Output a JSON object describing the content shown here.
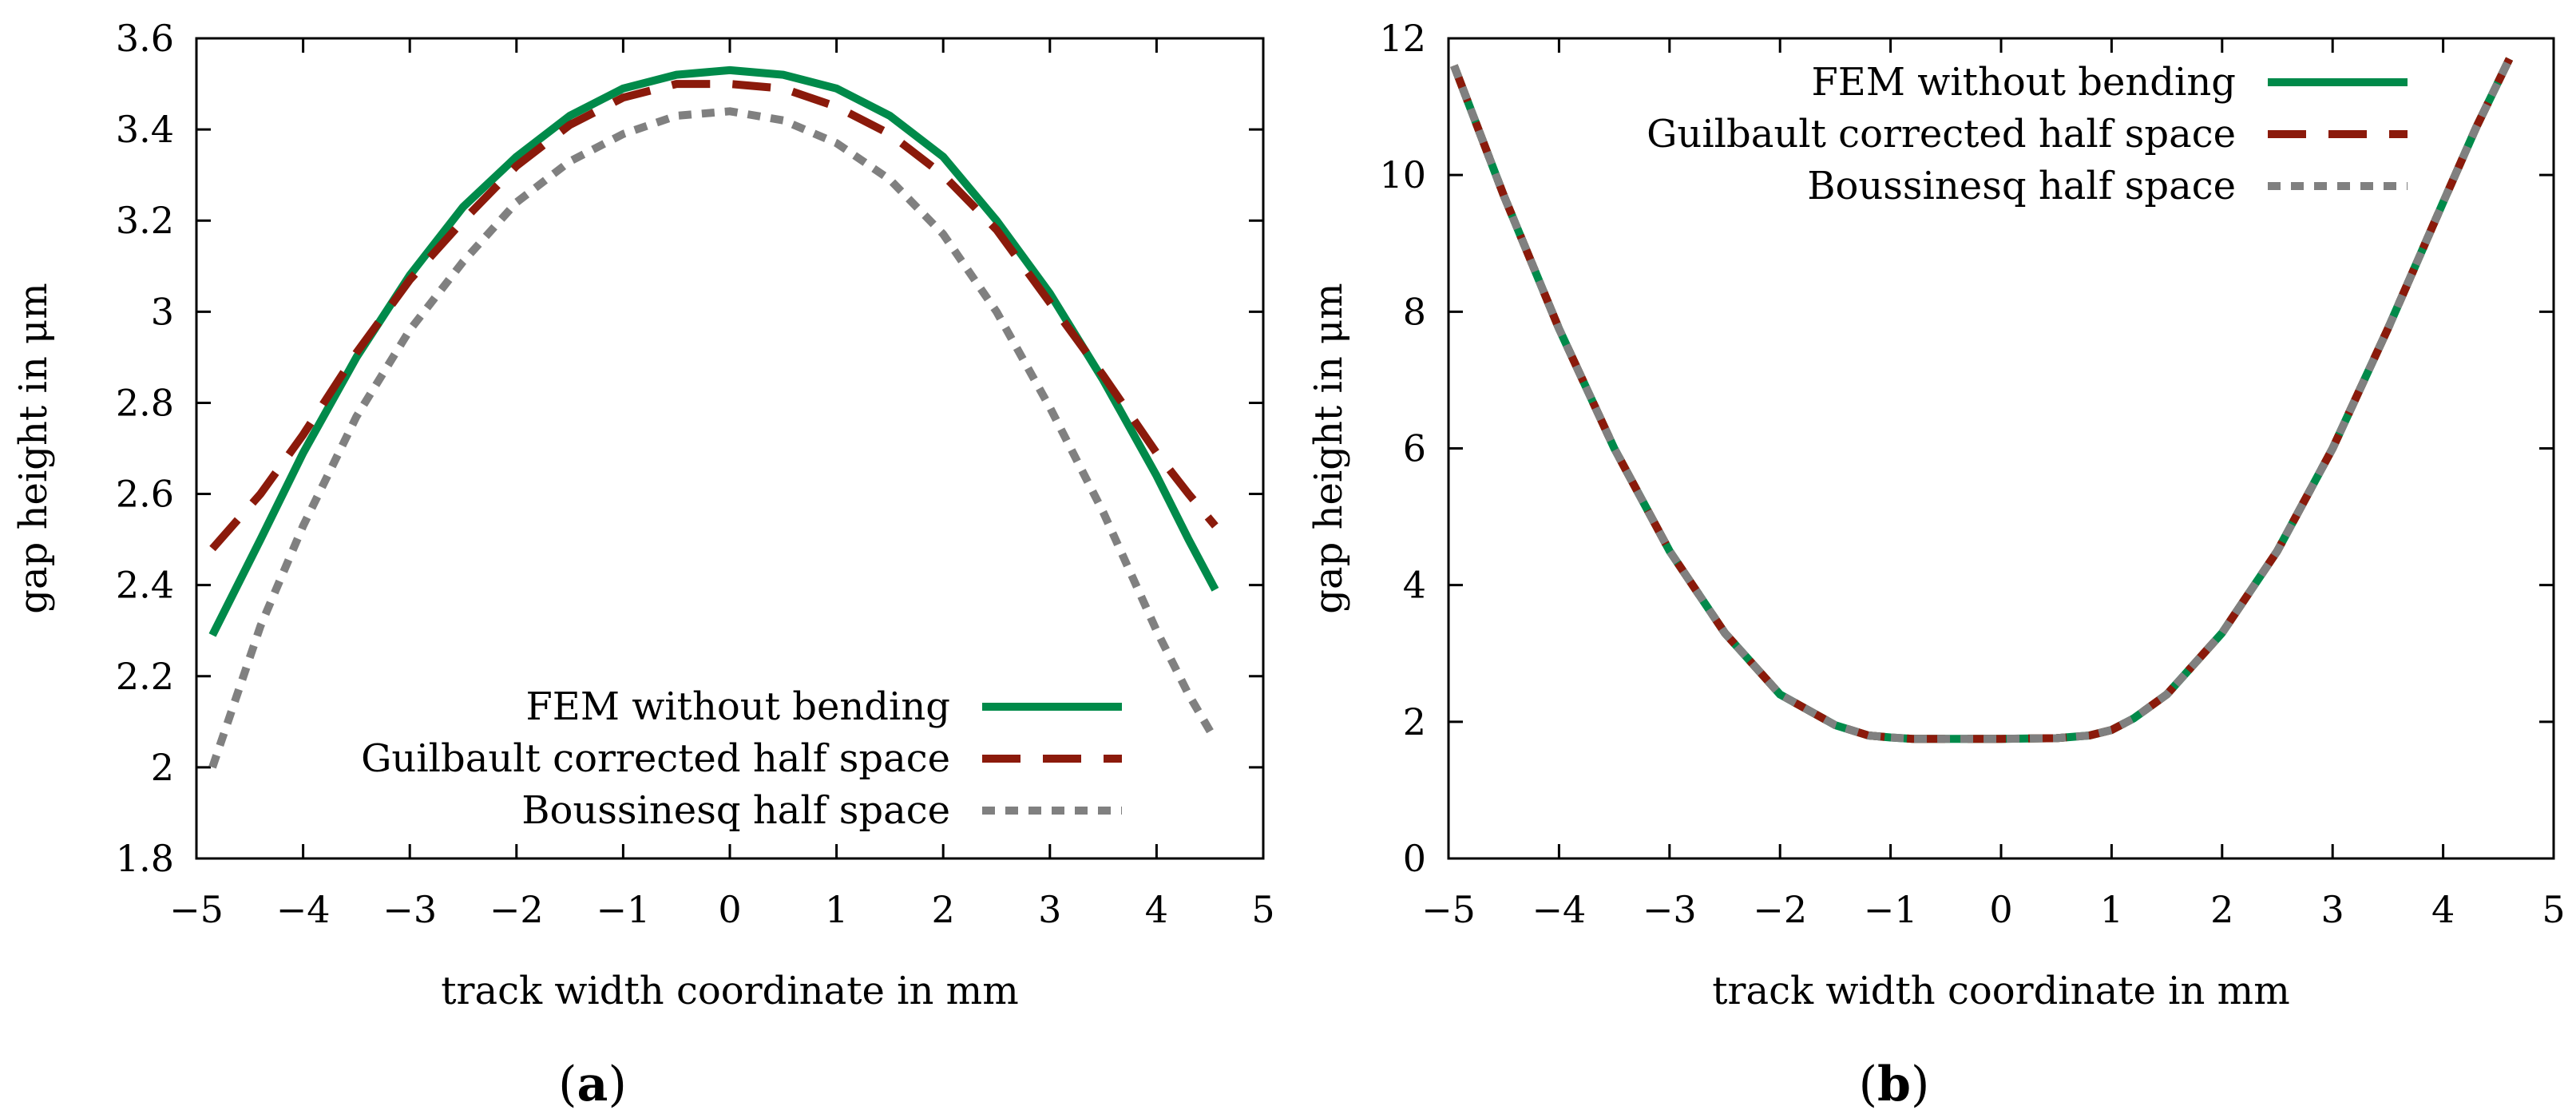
{
  "figure": {
    "caption_a_open": "(",
    "caption_a_letter": "a",
    "caption_a_close": ")",
    "caption_b_open": "(",
    "caption_b_letter": "b",
    "caption_b_close": ")"
  },
  "chart_data": [
    {
      "id": "a",
      "type": "line",
      "title": "",
      "xlabel": "track width coordinate in mm",
      "ylabel": "gap height in μm",
      "xlim": [
        -5,
        5
      ],
      "ylim": [
        1.8,
        3.6
      ],
      "xticks": [
        -5,
        -4,
        -3,
        -2,
        -1,
        0,
        1,
        2,
        3,
        4,
        5
      ],
      "xtick_labels": [
        "−5",
        "−4",
        "−3",
        "−2",
        "−1",
        "0",
        "1",
        "2",
        "3",
        "4",
        "5"
      ],
      "yticks": [
        1.8,
        2,
        2.2,
        2.4,
        2.6,
        2.8,
        3,
        3.2,
        3.4,
        3.6
      ],
      "ytick_labels": [
        "1.8",
        "2",
        "2.2",
        "2.4",
        "2.6",
        "2.8",
        "3",
        "3.2",
        "3.4",
        "3.6"
      ],
      "legend_position": "bottom-right",
      "series": [
        {
          "name": "FEM without bending",
          "color": "#008a4a",
          "style": "solid",
          "x": [
            -4.85,
            -4.4,
            -4.0,
            -3.5,
            -3.0,
            -2.5,
            -2.0,
            -1.5,
            -1.0,
            -0.5,
            0.0,
            0.5,
            1.0,
            1.5,
            2.0,
            2.5,
            3.0,
            3.5,
            4.0,
            4.3,
            4.55
          ],
          "y": [
            2.29,
            2.5,
            2.69,
            2.9,
            3.08,
            3.23,
            3.34,
            3.43,
            3.49,
            3.52,
            3.53,
            3.52,
            3.49,
            3.43,
            3.34,
            3.2,
            3.04,
            2.85,
            2.64,
            2.5,
            2.39
          ]
        },
        {
          "name": "Guilbault corrected half space",
          "color": "#8b1a0b",
          "style": "dashed",
          "x": [
            -4.85,
            -4.4,
            -4.0,
            -3.5,
            -3.0,
            -2.5,
            -2.0,
            -1.5,
            -1.0,
            -0.5,
            0.0,
            0.5,
            1.0,
            1.5,
            2.0,
            2.5,
            3.0,
            3.5,
            4.0,
            4.3,
            4.55
          ],
          "y": [
            2.48,
            2.6,
            2.73,
            2.91,
            3.07,
            3.2,
            3.32,
            3.41,
            3.47,
            3.5,
            3.5,
            3.49,
            3.45,
            3.39,
            3.3,
            3.18,
            3.02,
            2.86,
            2.69,
            2.6,
            2.53
          ]
        },
        {
          "name": "Boussinesq half space",
          "color": "#808080",
          "style": "dotted",
          "x": [
            -4.85,
            -4.4,
            -4.0,
            -3.5,
            -3.0,
            -2.5,
            -2.0,
            -1.5,
            -1.0,
            -0.5,
            0.0,
            0.5,
            1.0,
            1.5,
            2.0,
            2.5,
            3.0,
            3.5,
            4.0,
            4.3,
            4.55
          ],
          "y": [
            2.0,
            2.31,
            2.53,
            2.77,
            2.96,
            3.11,
            3.24,
            3.33,
            3.39,
            3.43,
            3.44,
            3.42,
            3.37,
            3.29,
            3.17,
            3.0,
            2.79,
            2.56,
            2.3,
            2.16,
            2.06
          ]
        }
      ]
    },
    {
      "id": "b",
      "type": "line",
      "title": "",
      "xlabel": "track width coordinate in mm",
      "ylabel": "gap height in μm",
      "xlim": [
        -5,
        5
      ],
      "ylim": [
        0,
        12
      ],
      "xticks": [
        -5,
        -4,
        -3,
        -2,
        -1,
        0,
        1,
        2,
        3,
        4,
        5
      ],
      "xtick_labels": [
        "−5",
        "−4",
        "−3",
        "−2",
        "−1",
        "0",
        "1",
        "2",
        "3",
        "4",
        "5"
      ],
      "yticks": [
        0,
        2,
        4,
        6,
        8,
        10,
        12
      ],
      "ytick_labels": [
        "0",
        "2",
        "4",
        "6",
        "8",
        "10",
        "12"
      ],
      "legend_position": "top-right",
      "series": [
        {
          "name": "FEM without bending",
          "color": "#008a4a",
          "style": "solid",
          "x": [
            -4.95,
            -4.5,
            -4.0,
            -3.5,
            -3.0,
            -2.5,
            -2.0,
            -1.5,
            -1.2,
            -1.0,
            -0.8,
            -0.5,
            0.0,
            0.5,
            0.8,
            1.0,
            1.2,
            1.5,
            2.0,
            2.5,
            3.0,
            3.5,
            4.0,
            4.3,
            4.6
          ],
          "y": [
            11.6,
            9.7,
            7.75,
            6.0,
            4.5,
            3.3,
            2.4,
            1.95,
            1.8,
            1.77,
            1.75,
            1.75,
            1.75,
            1.76,
            1.8,
            1.88,
            2.05,
            2.4,
            3.3,
            4.5,
            6.0,
            7.75,
            9.6,
            10.7,
            11.7
          ]
        },
        {
          "name": "Guilbault corrected half space",
          "color": "#8b1a0b",
          "style": "dashed",
          "x": [
            -4.95,
            -4.5,
            -4.0,
            -3.5,
            -3.0,
            -2.5,
            -2.0,
            -1.5,
            -1.2,
            -1.0,
            -0.8,
            -0.5,
            0.0,
            0.5,
            0.8,
            1.0,
            1.2,
            1.5,
            2.0,
            2.5,
            3.0,
            3.5,
            4.0,
            4.3,
            4.6
          ],
          "y": [
            11.6,
            9.7,
            7.75,
            6.0,
            4.5,
            3.3,
            2.4,
            1.95,
            1.8,
            1.77,
            1.75,
            1.75,
            1.75,
            1.76,
            1.8,
            1.88,
            2.05,
            2.4,
            3.3,
            4.5,
            6.0,
            7.75,
            9.6,
            10.7,
            11.7
          ]
        },
        {
          "name": "Boussinesq half space",
          "color": "#808080",
          "style": "dotted",
          "x": [
            -4.95,
            -4.5,
            -4.0,
            -3.5,
            -3.0,
            -2.5,
            -2.0,
            -1.5,
            -1.2,
            -1.0,
            -0.8,
            -0.5,
            0.0,
            0.5,
            0.8,
            1.0,
            1.2,
            1.5,
            2.0,
            2.5,
            3.0,
            3.5,
            4.0,
            4.3,
            4.6
          ],
          "y": [
            11.6,
            9.7,
            7.75,
            6.0,
            4.5,
            3.3,
            2.4,
            1.95,
            1.8,
            1.77,
            1.75,
            1.75,
            1.75,
            1.76,
            1.8,
            1.88,
            2.05,
            2.4,
            3.3,
            4.5,
            6.0,
            7.75,
            9.6,
            10.7,
            11.7
          ]
        }
      ]
    }
  ]
}
